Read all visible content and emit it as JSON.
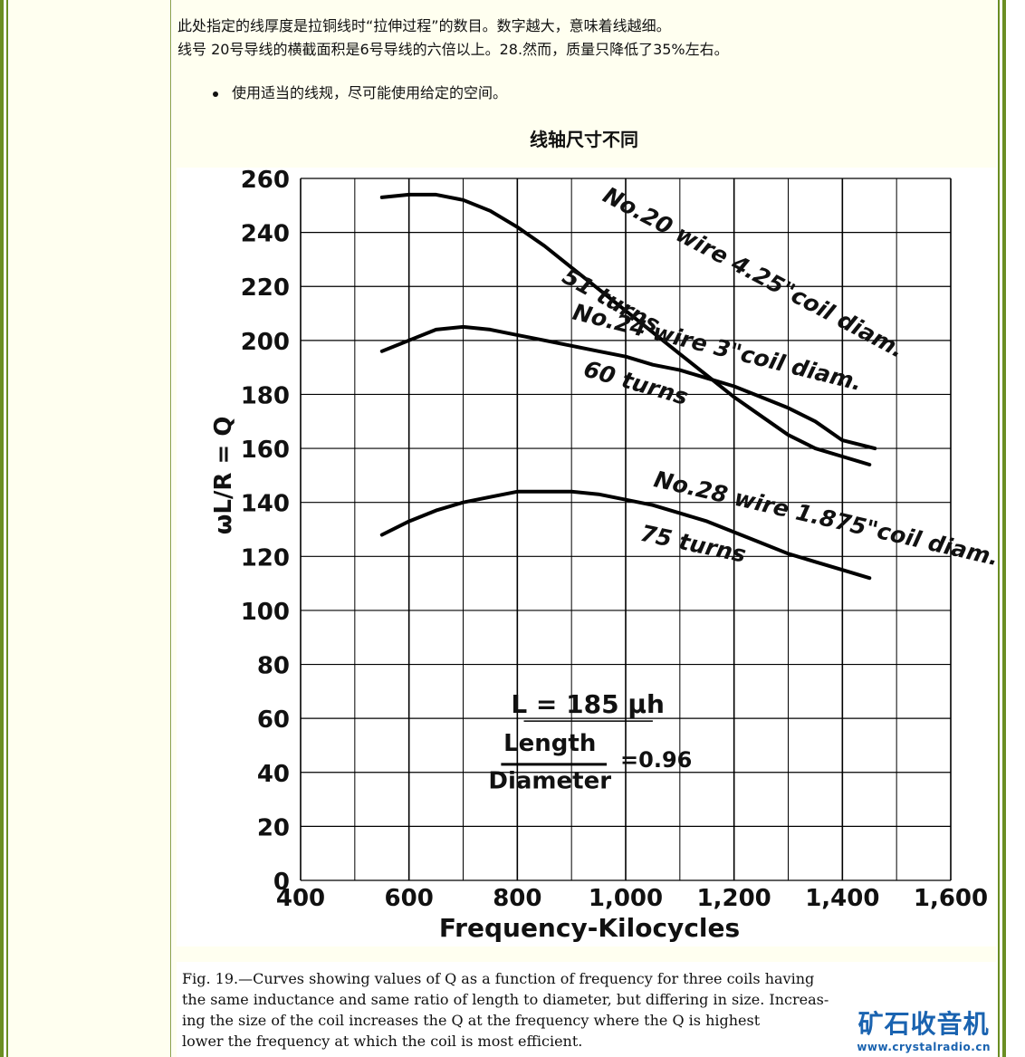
{
  "paragraphs": [
    "此处指定的线厚度是拉铜线时“拉伸过程”的数目。数字越大，意味着线越细。",
    "线号 20号导线的横截面积是6号导线的六倍以上。28.然而，质量只降低了35%左右。"
  ],
  "bullet": "使用适当的线规，尽可能使用给定的空间。",
  "section_title": "线轴尺寸不同",
  "caption": [
    "Fig. 19.—Curves showing values of Q as a function of frequency for three coils having",
    "the same inductance and same ratio of length to diameter, but differing in size.  Increas-",
    "ing the size of the coil increases the Q at the frequency where the Q is highest",
    "lower the frequency at which the coil is most efficient."
  ],
  "watermark": {
    "title": "矿石收音机",
    "url": "www.crystalradio.cn"
  },
  "chart_data": {
    "type": "line",
    "xlabel": "Frequency-Kilocycles",
    "ylabel": "ωL/R = Q",
    "xlim": [
      400,
      1600
    ],
    "ylim": [
      0,
      260
    ],
    "x_ticks": [
      "400",
      "600",
      "800",
      "1,000",
      "1,200",
      "1,400",
      "1,600"
    ],
    "y_ticks": [
      "0",
      "20",
      "40",
      "60",
      "80",
      "100",
      "120",
      "140",
      "160",
      "180",
      "200",
      "220",
      "240",
      "260"
    ],
    "grid": true,
    "line_color": "#000000",
    "series": [
      {
        "label_lines": [
          "No.20 wire   4.25\"coil diam.",
          "51 turns"
        ],
        "x": [
          550,
          600,
          650,
          700,
          750,
          800,
          850,
          900,
          950,
          1000,
          1050,
          1100,
          1150,
          1200,
          1250,
          1300,
          1350,
          1400,
          1450
        ],
        "y": [
          253,
          254,
          254,
          252,
          248,
          242,
          235,
          227,
          219,
          211,
          203,
          195,
          187,
          179,
          172,
          165,
          160,
          157,
          154
        ]
      },
      {
        "label_lines": [
          "No.24 wire  3\"coil diam.",
          "60 turns"
        ],
        "x": [
          550,
          600,
          650,
          700,
          750,
          800,
          850,
          900,
          950,
          1000,
          1050,
          1100,
          1150,
          1200,
          1250,
          1300,
          1350,
          1400,
          1460
        ],
        "y": [
          196,
          200,
          204,
          205,
          204,
          202,
          200,
          198,
          196,
          194,
          191,
          189,
          186,
          183,
          179,
          175,
          170,
          163,
          160
        ]
      },
      {
        "label_lines": [
          "No.28 wire   1.875\"coil diam.",
          "75 turns"
        ],
        "x": [
          550,
          600,
          650,
          700,
          750,
          800,
          850,
          900,
          950,
          1000,
          1050,
          1100,
          1150,
          1200,
          1250,
          1300,
          1350,
          1400,
          1450
        ],
        "y": [
          128,
          133,
          137,
          140,
          142,
          144,
          144,
          144,
          143,
          141,
          139,
          136,
          133,
          129,
          125,
          121,
          118,
          115,
          112
        ]
      }
    ],
    "annotations": [
      {
        "text": "L = 185 μh"
      },
      {
        "text": "Length"
      },
      {
        "text": "Diameter"
      },
      {
        "text": "=0.96"
      }
    ]
  }
}
